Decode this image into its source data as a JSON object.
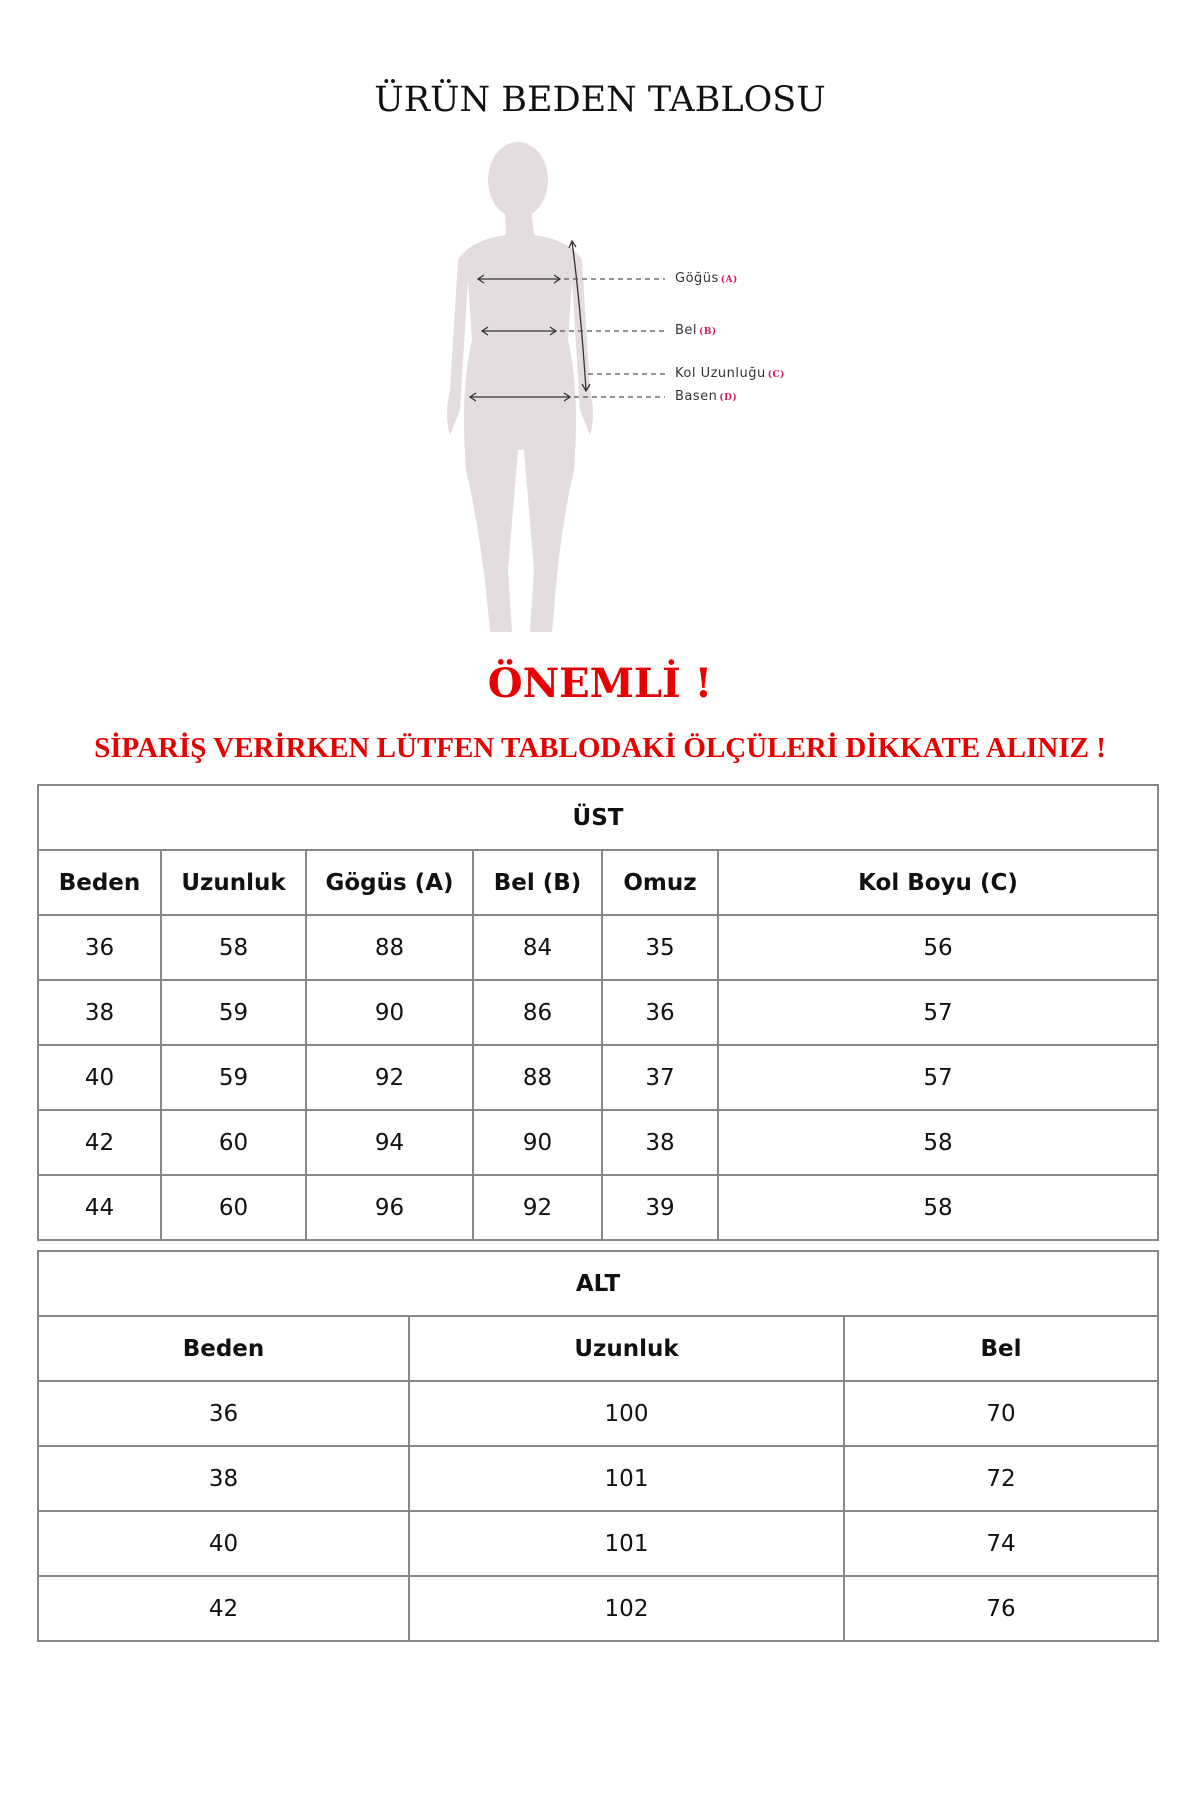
{
  "title": "ÜRÜN BEDEN TABLOSU",
  "figure": {
    "labels": [
      {
        "name": "Göğüs",
        "code": "(A)"
      },
      {
        "name": "Bel",
        "code": "(B)"
      },
      {
        "name": "Kol Uzunluğu",
        "code": "(C)"
      },
      {
        "name": "Basen",
        "code": "(D)"
      }
    ],
    "colors": {
      "silhouette": "#e5dcdd",
      "code": "#d0186a"
    }
  },
  "important": "ÖNEMLİ !",
  "note": "SİPARİŞ VERİRKEN LÜTFEN TABLODAKİ ÖLÇÜLERİ DİKKATE ALINIZ !",
  "ust": {
    "title": "ÜST",
    "headers": [
      "Beden",
      "Uzunluk",
      "Gögüs (A)",
      "Bel (B)",
      "Omuz",
      "Kol Boyu (C)"
    ],
    "rows": [
      [
        "36",
        "58",
        "88",
        "84",
        "35",
        "56"
      ],
      [
        "38",
        "59",
        "90",
        "86",
        "36",
        "57"
      ],
      [
        "40",
        "59",
        "92",
        "88",
        "37",
        "57"
      ],
      [
        "42",
        "60",
        "94",
        "90",
        "38",
        "58"
      ],
      [
        "44",
        "60",
        "96",
        "92",
        "39",
        "58"
      ]
    ]
  },
  "alt": {
    "title": "ALT",
    "headers": [
      "Beden",
      "Uzunluk",
      "Bel"
    ],
    "rows": [
      [
        "36",
        "100",
        "70"
      ],
      [
        "38",
        "101",
        "72"
      ],
      [
        "40",
        "101",
        "74"
      ],
      [
        "42",
        "102",
        "76"
      ]
    ]
  },
  "accent": "#e60000"
}
